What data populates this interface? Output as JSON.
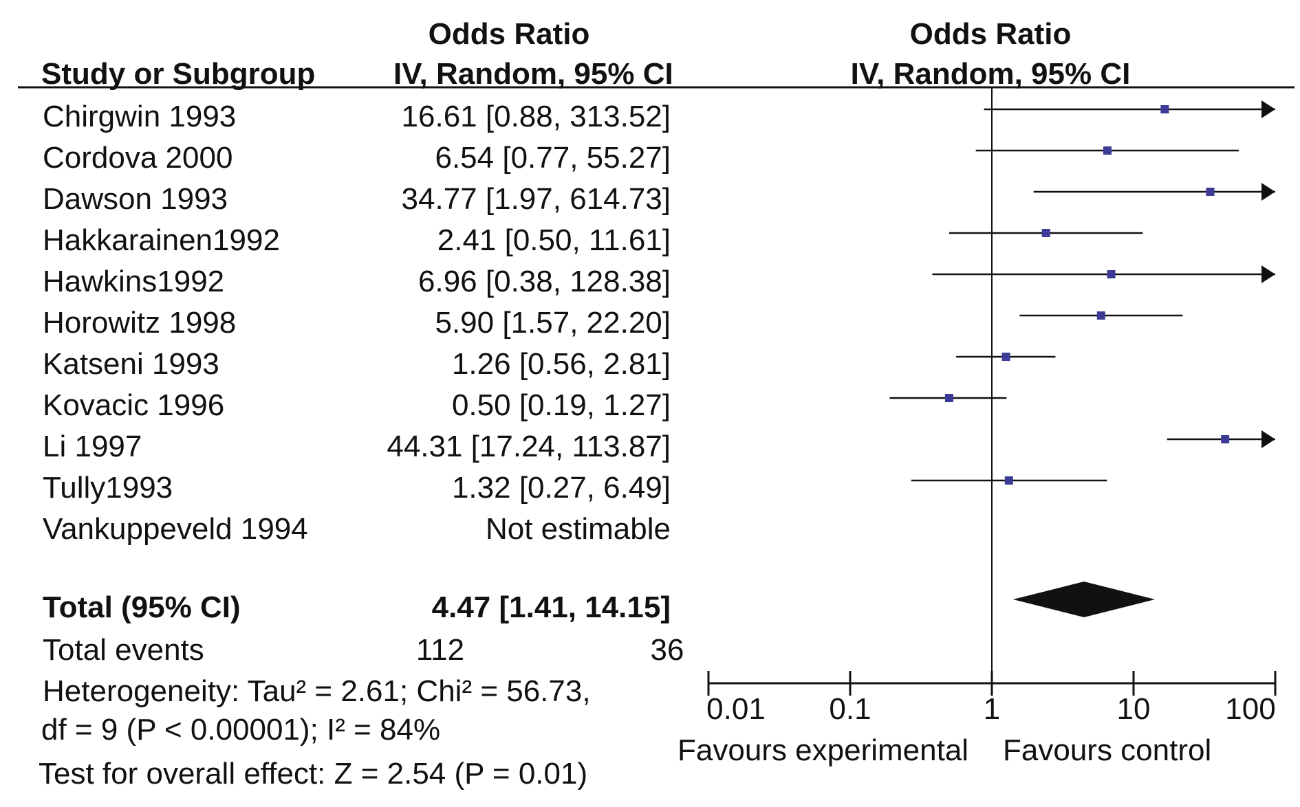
{
  "header": {
    "col_study": "Study or Subgroup",
    "col_or_line1": "Odds Ratio",
    "col_or_line2": "IV, Random, 95% CI",
    "plot_line1": "Odds Ratio",
    "plot_line2": "IV, Random, 95% CI"
  },
  "studies": [
    {
      "name": "Chirgwin 1993",
      "ci_text": "16.61 [0.88, 313.52]"
    },
    {
      "name": "Cordova 2000",
      "ci_text": "6.54 [0.77, 55.27]"
    },
    {
      "name": "Dawson 1993",
      "ci_text": "34.77 [1.97, 614.73]"
    },
    {
      "name": "Hakkarainen1992",
      "ci_text": "2.41 [0.50, 11.61]"
    },
    {
      "name": "Hawkins1992",
      "ci_text": "6.96 [0.38, 128.38]"
    },
    {
      "name": "Horowitz 1998",
      "ci_text": "5.90 [1.57, 22.20]"
    },
    {
      "name": "Katseni 1993",
      "ci_text": "1.26 [0.56, 2.81]"
    },
    {
      "name": "Kovacic 1996",
      "ci_text": "0.50 [0.19, 1.27]"
    },
    {
      "name": "Li 1997",
      "ci_text": "44.31 [17.24, 113.87]"
    },
    {
      "name": "Tully1993",
      "ci_text": "1.32 [0.27, 6.49]"
    },
    {
      "name": "Vankuppeveld 1994",
      "ci_text": "Not estimable"
    }
  ],
  "total": {
    "label": "Total (95% CI)",
    "ci_text": "4.47 [1.41, 14.15]",
    "events_label": "Total events",
    "events_experimental": "112",
    "events_control": "36"
  },
  "footer": {
    "heterogeneity_line1": "Heterogeneity: Tau² = 2.61; Chi² = 56.73,",
    "heterogeneity_line2": "df = 9 (P < 0.00001); I² = 84%",
    "overall_effect": "Test for overall effect: Z = 2.54 (P = 0.01)",
    "favours_left": "Favours experimental",
    "favours_right": "Favours control"
  },
  "chart_data": {
    "type": "forest",
    "x_scale": "log",
    "xlim": [
      0.01,
      100
    ],
    "x_ticks": [
      0.01,
      0.1,
      1,
      10,
      100
    ],
    "x_tick_labels": [
      "0.01",
      "0.1",
      "1",
      "10",
      "100"
    ],
    "reference_line": 1,
    "studies": [
      {
        "name": "Chirgwin 1993",
        "or": 16.61,
        "lower": 0.88,
        "upper": 313.52
      },
      {
        "name": "Cordova 2000",
        "or": 6.54,
        "lower": 0.77,
        "upper": 55.27
      },
      {
        "name": "Dawson 1993",
        "or": 34.77,
        "lower": 1.97,
        "upper": 614.73
      },
      {
        "name": "Hakkarainen1992",
        "or": 2.41,
        "lower": 0.5,
        "upper": 11.61
      },
      {
        "name": "Hawkins1992",
        "or": 6.96,
        "lower": 0.38,
        "upper": 128.38
      },
      {
        "name": "Horowitz 1998",
        "or": 5.9,
        "lower": 1.57,
        "upper": 22.2
      },
      {
        "name": "Katseni 1993",
        "or": 1.26,
        "lower": 0.56,
        "upper": 2.81
      },
      {
        "name": "Kovacic 1996",
        "or": 0.5,
        "lower": 0.19,
        "upper": 1.27
      },
      {
        "name": "Li 1997",
        "or": 44.31,
        "lower": 17.24,
        "upper": 113.87
      },
      {
        "name": "Tully1993",
        "or": 1.32,
        "lower": 0.27,
        "upper": 6.49
      },
      {
        "name": "Vankuppeveld 1994",
        "or": null,
        "lower": null,
        "upper": null
      }
    ],
    "pooled": {
      "or": 4.47,
      "lower": 1.41,
      "upper": 14.15
    },
    "colors": {
      "marker": "#3c3c96",
      "line": "#111111",
      "diamond": "#111111"
    }
  }
}
